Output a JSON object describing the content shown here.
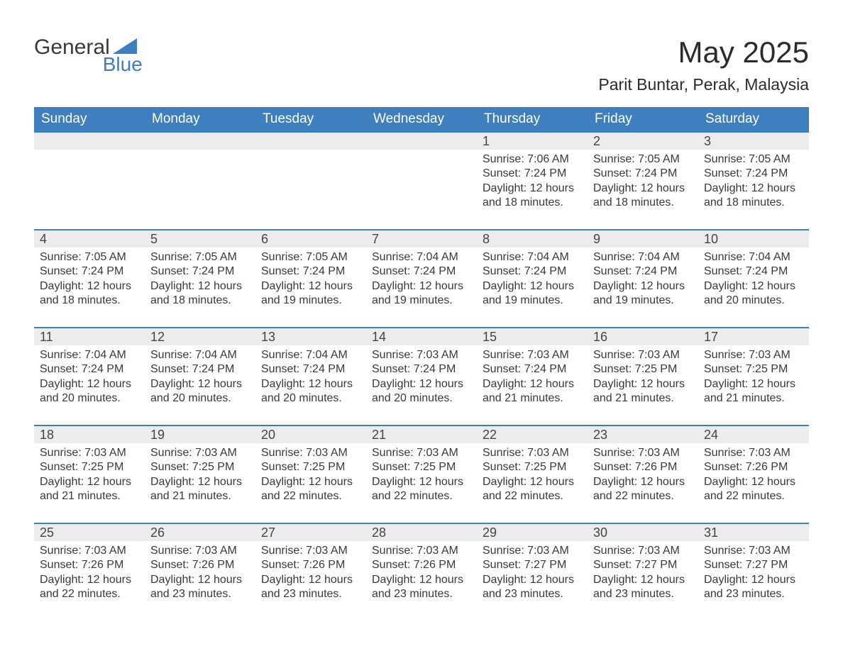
{
  "brand": {
    "word1": "General",
    "word2": "Blue"
  },
  "title": "May 2025",
  "location": "Parit Buntar, Perak, Malaysia",
  "colors": {
    "header_bg": "#3f7fbf",
    "header_text": "#ffffff",
    "daynum_bg": "#ececec",
    "border": "#3f7fbf",
    "body_text": "#3a3a3a",
    "page_bg": "#ffffff"
  },
  "typography": {
    "title_fontsize": 42,
    "location_fontsize": 23,
    "day_header_fontsize": 19,
    "daynum_fontsize": 18,
    "cell_fontsize": 16
  },
  "calendar": {
    "type": "table",
    "columns": [
      "Sunday",
      "Monday",
      "Tuesday",
      "Wednesday",
      "Thursday",
      "Friday",
      "Saturday"
    ],
    "weeks": [
      [
        null,
        null,
        null,
        null,
        {
          "n": "1",
          "sr": "7:06 AM",
          "ss": "7:24 PM",
          "dl": "12 hours and 18 minutes."
        },
        {
          "n": "2",
          "sr": "7:05 AM",
          "ss": "7:24 PM",
          "dl": "12 hours and 18 minutes."
        },
        {
          "n": "3",
          "sr": "7:05 AM",
          "ss": "7:24 PM",
          "dl": "12 hours and 18 minutes."
        }
      ],
      [
        {
          "n": "4",
          "sr": "7:05 AM",
          "ss": "7:24 PM",
          "dl": "12 hours and 18 minutes."
        },
        {
          "n": "5",
          "sr": "7:05 AM",
          "ss": "7:24 PM",
          "dl": "12 hours and 18 minutes."
        },
        {
          "n": "6",
          "sr": "7:05 AM",
          "ss": "7:24 PM",
          "dl": "12 hours and 19 minutes."
        },
        {
          "n": "7",
          "sr": "7:04 AM",
          "ss": "7:24 PM",
          "dl": "12 hours and 19 minutes."
        },
        {
          "n": "8",
          "sr": "7:04 AM",
          "ss": "7:24 PM",
          "dl": "12 hours and 19 minutes."
        },
        {
          "n": "9",
          "sr": "7:04 AM",
          "ss": "7:24 PM",
          "dl": "12 hours and 19 minutes."
        },
        {
          "n": "10",
          "sr": "7:04 AM",
          "ss": "7:24 PM",
          "dl": "12 hours and 20 minutes."
        }
      ],
      [
        {
          "n": "11",
          "sr": "7:04 AM",
          "ss": "7:24 PM",
          "dl": "12 hours and 20 minutes."
        },
        {
          "n": "12",
          "sr": "7:04 AM",
          "ss": "7:24 PM",
          "dl": "12 hours and 20 minutes."
        },
        {
          "n": "13",
          "sr": "7:04 AM",
          "ss": "7:24 PM",
          "dl": "12 hours and 20 minutes."
        },
        {
          "n": "14",
          "sr": "7:03 AM",
          "ss": "7:24 PM",
          "dl": "12 hours and 20 minutes."
        },
        {
          "n": "15",
          "sr": "7:03 AM",
          "ss": "7:24 PM",
          "dl": "12 hours and 21 minutes."
        },
        {
          "n": "16",
          "sr": "7:03 AM",
          "ss": "7:25 PM",
          "dl": "12 hours and 21 minutes."
        },
        {
          "n": "17",
          "sr": "7:03 AM",
          "ss": "7:25 PM",
          "dl": "12 hours and 21 minutes."
        }
      ],
      [
        {
          "n": "18",
          "sr": "7:03 AM",
          "ss": "7:25 PM",
          "dl": "12 hours and 21 minutes."
        },
        {
          "n": "19",
          "sr": "7:03 AM",
          "ss": "7:25 PM",
          "dl": "12 hours and 21 minutes."
        },
        {
          "n": "20",
          "sr": "7:03 AM",
          "ss": "7:25 PM",
          "dl": "12 hours and 22 minutes."
        },
        {
          "n": "21",
          "sr": "7:03 AM",
          "ss": "7:25 PM",
          "dl": "12 hours and 22 minutes."
        },
        {
          "n": "22",
          "sr": "7:03 AM",
          "ss": "7:25 PM",
          "dl": "12 hours and 22 minutes."
        },
        {
          "n": "23",
          "sr": "7:03 AM",
          "ss": "7:26 PM",
          "dl": "12 hours and 22 minutes."
        },
        {
          "n": "24",
          "sr": "7:03 AM",
          "ss": "7:26 PM",
          "dl": "12 hours and 22 minutes."
        }
      ],
      [
        {
          "n": "25",
          "sr": "7:03 AM",
          "ss": "7:26 PM",
          "dl": "12 hours and 22 minutes."
        },
        {
          "n": "26",
          "sr": "7:03 AM",
          "ss": "7:26 PM",
          "dl": "12 hours and 23 minutes."
        },
        {
          "n": "27",
          "sr": "7:03 AM",
          "ss": "7:26 PM",
          "dl": "12 hours and 23 minutes."
        },
        {
          "n": "28",
          "sr": "7:03 AM",
          "ss": "7:26 PM",
          "dl": "12 hours and 23 minutes."
        },
        {
          "n": "29",
          "sr": "7:03 AM",
          "ss": "7:27 PM",
          "dl": "12 hours and 23 minutes."
        },
        {
          "n": "30",
          "sr": "7:03 AM",
          "ss": "7:27 PM",
          "dl": "12 hours and 23 minutes."
        },
        {
          "n": "31",
          "sr": "7:03 AM",
          "ss": "7:27 PM",
          "dl": "12 hours and 23 minutes."
        }
      ]
    ],
    "labels": {
      "sunrise": "Sunrise:",
      "sunset": "Sunset:",
      "daylight": "Daylight:"
    }
  }
}
